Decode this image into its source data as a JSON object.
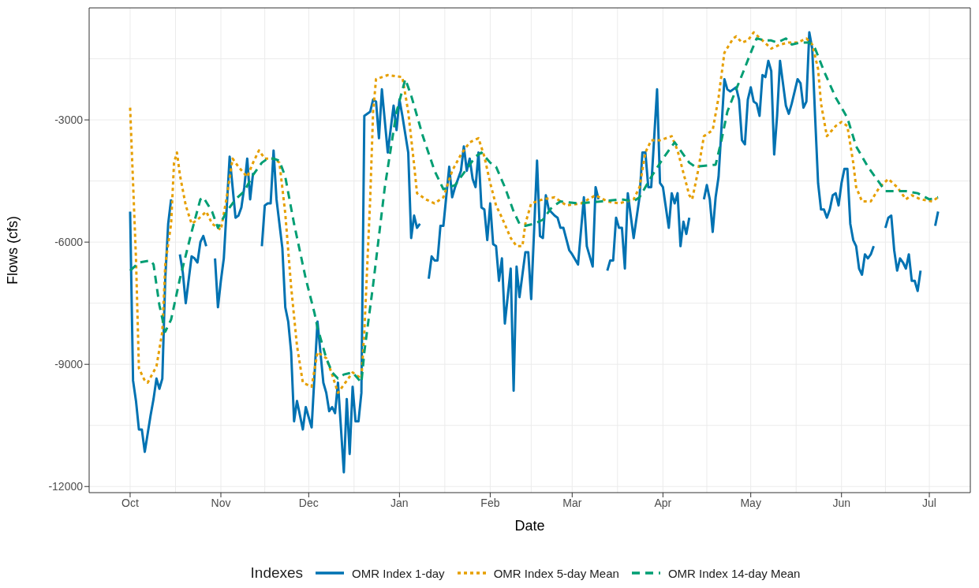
{
  "chart_data": {
    "type": "line",
    "xlabel": "Date",
    "ylabel": "Flows (cfs)",
    "legend_title": "Indexes",
    "legend": "bottom",
    "grid": true,
    "xlim": [
      "2000-09-17",
      "2001-07-15"
    ],
    "xticks": [
      {
        "value": "2000-10-01",
        "label": "Oct"
      },
      {
        "value": "2000-11-01",
        "label": "Nov"
      },
      {
        "value": "2000-12-01",
        "label": "Dec"
      },
      {
        "value": "2001-01-01",
        "label": "Jan"
      },
      {
        "value": "2001-02-01",
        "label": "Feb"
      },
      {
        "value": "2001-03-01",
        "label": "Mar"
      },
      {
        "value": "2001-04-01",
        "label": "Apr"
      },
      {
        "value": "2001-05-01",
        "label": "May"
      },
      {
        "value": "2001-06-01",
        "label": "Jun"
      },
      {
        "value": "2001-07-01",
        "label": "Jul"
      }
    ],
    "ylim": [
      -12150,
      -250
    ],
    "yticks": [
      {
        "value": -12000,
        "label": "-12000"
      },
      {
        "value": -9000,
        "label": "-9000"
      },
      {
        "value": -6000,
        "label": "-6000"
      },
      {
        "value": -3000,
        "label": "-3000"
      }
    ],
    "series": [
      {
        "name": "OMR Index 1-day",
        "color": "#0072b2",
        "line_style": "solid",
        "x": [
          "2000-10-01",
          "2000-10-02",
          "2000-10-03",
          "2000-10-04",
          "2000-10-05",
          "2000-10-06",
          "2000-10-08",
          "2000-10-09",
          "2000-10-10",
          "2000-10-11",
          "2000-10-12",
          "2000-10-13",
          "2000-10-14",
          "2000-10-15",
          "2000-10-16",
          "2000-10-18",
          "2000-10-19",
          "2000-10-20",
          "2000-10-22",
          "2000-10-23",
          "2000-10-24",
          "2000-10-25",
          "2000-10-26",
          "2000-10-27",
          "2000-10-28",
          "2000-10-30",
          "2000-10-31",
          "2000-11-01",
          "2000-11-02",
          "2000-11-04",
          "2000-11-06",
          "2000-11-07",
          "2000-11-08",
          "2000-11-09",
          "2000-11-10",
          "2000-11-11",
          "2000-11-12",
          "2000-11-13",
          "2000-11-15",
          "2000-11-16",
          "2000-11-17",
          "2000-11-18",
          "2000-11-19",
          "2000-11-20",
          "2000-11-22",
          "2000-11-23",
          "2000-11-24",
          "2000-11-25",
          "2000-11-26",
          "2000-11-27",
          "2000-11-29",
          "2000-11-30",
          "2000-12-02",
          "2000-12-04",
          "2000-12-06",
          "2000-12-07",
          "2000-12-08",
          "2000-12-09",
          "2000-12-10",
          "2000-12-11",
          "2000-12-13",
          "2000-12-14",
          "2000-12-15",
          "2000-12-16",
          "2000-12-17",
          "2000-12-18",
          "2000-12-19",
          "2000-12-20",
          "2000-12-22",
          "2000-12-23",
          "2000-12-24",
          "2000-12-25",
          "2000-12-26",
          "2000-12-28",
          "2000-12-30",
          "2000-12-31",
          "2001-01-01",
          "2001-01-02",
          "2001-01-04",
          "2001-01-05",
          "2001-01-06",
          "2001-01-07",
          "2001-01-08",
          "2001-01-09",
          "2001-01-11",
          "2001-01-12",
          "2001-01-13",
          "2001-01-14",
          "2001-01-15",
          "2001-01-16",
          "2001-01-18",
          "2001-01-19",
          "2001-01-20",
          "2001-01-22",
          "2001-01-23",
          "2001-01-24",
          "2001-01-25",
          "2001-01-26",
          "2001-01-27",
          "2001-01-28",
          "2001-01-29",
          "2001-01-30",
          "2001-01-31",
          "2001-02-01",
          "2001-02-02",
          "2001-02-03",
          "2001-02-04",
          "2001-02-05",
          "2001-02-06",
          "2001-02-08",
          "2001-02-09",
          "2001-02-10",
          "2001-02-11",
          "2001-02-13",
          "2001-02-14",
          "2001-02-15",
          "2001-02-17",
          "2001-02-18",
          "2001-02-19",
          "2001-02-20",
          "2001-02-21",
          "2001-02-23",
          "2001-02-24",
          "2001-02-25",
          "2001-02-26",
          "2001-02-28",
          "2001-03-01",
          "2001-03-03",
          "2001-03-05",
          "2001-03-06",
          "2001-03-08",
          "2001-03-09",
          "2001-03-10",
          "2001-03-11",
          "2001-03-13",
          "2001-03-14",
          "2001-03-15",
          "2001-03-16",
          "2001-03-17",
          "2001-03-18",
          "2001-03-19",
          "2001-03-20",
          "2001-03-22",
          "2001-03-24",
          "2001-03-25",
          "2001-03-26",
          "2001-03-27",
          "2001-03-28",
          "2001-03-30",
          "2001-03-31",
          "2001-04-01",
          "2001-04-03",
          "2001-04-04",
          "2001-04-05",
          "2001-04-06",
          "2001-04-07",
          "2001-04-08",
          "2001-04-09",
          "2001-04-10",
          "2001-04-12",
          "2001-04-15",
          "2001-04-16",
          "2001-04-17",
          "2001-04-18",
          "2001-04-19",
          "2001-04-20",
          "2001-04-22",
          "2001-04-23",
          "2001-04-24",
          "2001-04-25",
          "2001-04-26",
          "2001-04-27",
          "2001-04-28",
          "2001-04-29",
          "2001-04-30",
          "2001-05-01",
          "2001-05-02",
          "2001-05-03",
          "2001-05-04",
          "2001-05-05",
          "2001-05-06",
          "2001-05-07",
          "2001-05-08",
          "2001-05-09",
          "2001-05-10",
          "2001-05-11",
          "2001-05-12",
          "2001-05-13",
          "2001-05-14",
          "2001-05-15",
          "2001-05-17",
          "2001-05-18",
          "2001-05-19",
          "2001-05-20",
          "2001-05-21",
          "2001-05-22",
          "2001-05-23",
          "2001-05-24",
          "2001-05-25",
          "2001-05-26",
          "2001-05-27",
          "2001-05-28",
          "2001-05-29",
          "2001-05-30",
          "2001-05-31",
          "2001-06-01",
          "2001-06-02",
          "2001-06-03",
          "2001-06-04",
          "2001-06-05",
          "2001-06-06",
          "2001-06-07",
          "2001-06-08",
          "2001-06-09",
          "2001-06-10",
          "2001-06-11",
          "2001-06-12",
          "2001-06-14",
          "2001-06-16",
          "2001-06-17",
          "2001-06-18",
          "2001-06-19",
          "2001-06-20",
          "2001-06-21",
          "2001-06-22",
          "2001-06-23",
          "2001-06-24",
          "2001-06-25",
          "2001-06-26",
          "2001-06-27",
          "2001-06-28",
          "2001-06-30",
          "2001-07-03",
          "2001-07-04"
        ],
        "values": [
          -5250,
          -9400,
          -9900,
          -10600,
          -10600,
          -11150,
          -10250,
          -9850,
          -9350,
          -9600,
          -9350,
          -6900,
          -5550,
          -4950,
          null,
          -6300,
          -6750,
          -7500,
          -6350,
          -6400,
          -6500,
          -6000,
          -5850,
          -6100,
          null,
          -6400,
          -7600,
          -6950,
          -6400,
          -3900,
          -5400,
          -5350,
          -5150,
          -4650,
          -3950,
          -4950,
          -4300,
          null,
          -6100,
          -5100,
          -5050,
          -5050,
          -3750,
          -4950,
          -6150,
          -7600,
          -7950,
          -8700,
          -10400,
          -9900,
          -10600,
          -10050,
          -10550,
          -7950,
          -9450,
          -9700,
          -10150,
          -10050,
          -10200,
          -9450,
          -11650,
          -9850,
          -11200,
          -9550,
          -10400,
          -10400,
          -9700,
          -2900,
          -2800,
          -2500,
          -2550,
          -3450,
          -2250,
          -3800,
          -2650,
          -3250,
          -2500,
          -2900,
          -3800,
          -5900,
          -5350,
          -5650,
          -5550,
          null,
          -6900,
          -6350,
          -6450,
          -6450,
          -5600,
          -5600,
          -4150,
          -4900,
          -4650,
          -4250,
          -3650,
          -4250,
          -3950,
          -4450,
          -4650,
          -3800,
          -5150,
          -5200,
          -5950,
          -5050,
          -6050,
          -6100,
          -6950,
          -6400,
          -8000,
          -6650,
          -9650,
          -6600,
          -7350,
          -6250,
          -6250,
          -7400,
          -4000,
          -5850,
          -5900,
          -4850,
          -5200,
          -5350,
          -5400,
          -5650,
          -5650,
          -6200,
          -6300,
          -6550,
          -4900,
          -6100,
          -6600,
          -4650,
          -4950,
          null,
          -6700,
          -6450,
          -6450,
          -5400,
          -5650,
          -5650,
          -6650,
          -4800,
          -5900,
          -4900,
          -3800,
          -3800,
          -4650,
          -4650,
          -2250,
          -4550,
          -4650,
          -5650,
          -4800,
          -5050,
          -4800,
          -6100,
          -5500,
          -5800,
          -5400,
          null,
          -4950,
          -4600,
          -4950,
          -5750,
          -4900,
          -4400,
          -2000,
          -2250,
          -2300,
          -2250,
          -2200,
          -2500,
          -3500,
          -3600,
          -2500,
          -2200,
          -2550,
          -2600,
          -2900,
          -1900,
          -1950,
          -1550,
          -1800,
          -3850,
          -2900,
          -1550,
          -2100,
          -2650,
          -2850,
          -2600,
          -2000,
          -2100,
          -2700,
          -2550,
          -850,
          -1250,
          -2950,
          -4550,
          -5200,
          -5200,
          -5400,
          -5200,
          -4850,
          -4800,
          -5100,
          -4550,
          -4200,
          -4200,
          -5550,
          -5950,
          -6100,
          -6650,
          -6800,
          -6300,
          -6400,
          -6300,
          -6100,
          null,
          -5650,
          -5400,
          -5350,
          -6200,
          -6700,
          -6400,
          -6500,
          -6650,
          -6300,
          -6950,
          -6950,
          -7200,
          -6700,
          null,
          -5600,
          -5250
        ]
      },
      {
        "name": "OMR Index 5-day Mean",
        "color": "#e69f00",
        "line_style": "dotted",
        "x": [
          "2000-10-01",
          "2000-10-03",
          "2000-10-04",
          "2000-10-06",
          "2000-10-07",
          "2000-10-10",
          "2000-10-12",
          "2000-10-13",
          "2000-10-15",
          "2000-10-16",
          "2000-10-17",
          "2000-10-18",
          "2000-10-20",
          "2000-10-22",
          "2000-10-24",
          "2000-10-27",
          "2000-10-29",
          "2000-11-01",
          "2000-11-03",
          "2000-11-05",
          "2000-11-07",
          "2000-11-10",
          "2000-11-12",
          "2000-11-14",
          "2000-11-16",
          "2000-11-19",
          "2000-11-21",
          "2000-11-23",
          "2000-11-25",
          "2000-11-27",
          "2000-11-29",
          "2000-12-02",
          "2000-12-04",
          "2000-12-07",
          "2000-12-09",
          "2000-12-11",
          "2000-12-14",
          "2000-12-16",
          "2000-12-19",
          "2000-12-20",
          "2000-12-22",
          "2000-12-23",
          "2000-12-24",
          "2000-12-28",
          "2001-01-02",
          "2001-01-04",
          "2001-01-06",
          "2001-01-07",
          "2001-01-10",
          "2001-01-13",
          "2001-01-16",
          "2001-01-19",
          "2001-01-22",
          "2001-01-25",
          "2001-01-28",
          "2001-01-30",
          "2001-02-01",
          "2001-02-03",
          "2001-02-05",
          "2001-02-08",
          "2001-02-10",
          "2001-02-12",
          "2001-02-13",
          "2001-02-15",
          "2001-02-19",
          "2001-02-23",
          "2001-02-27",
          "2001-03-04",
          "2001-03-09",
          "2001-03-13",
          "2001-03-17",
          "2001-03-22",
          "2001-03-24",
          "2001-03-26",
          "2001-03-28",
          "2001-03-31",
          "2001-04-04",
          "2001-04-06",
          "2001-04-08",
          "2001-04-10",
          "2001-04-11",
          "2001-04-13",
          "2001-04-15",
          "2001-04-18",
          "2001-04-20",
          "2001-04-22",
          "2001-04-25",
          "2001-04-26",
          "2001-04-28",
          "2001-04-30",
          "2001-05-02",
          "2001-05-05",
          "2001-05-08",
          "2001-05-11",
          "2001-05-14",
          "2001-05-17",
          "2001-05-20",
          "2001-05-22",
          "2001-05-24",
          "2001-05-25",
          "2001-05-27",
          "2001-05-30",
          "2001-06-01",
          "2001-06-03",
          "2001-06-05",
          "2001-06-06",
          "2001-06-08",
          "2001-06-11",
          "2001-06-14",
          "2001-06-17",
          "2001-06-20",
          "2001-06-23",
          "2001-06-25",
          "2001-06-28",
          "2001-07-02",
          "2001-07-04"
        ],
        "values": [
          -2700,
          -6400,
          -9100,
          -9400,
          -9450,
          -9050,
          -8200,
          -6550,
          -5550,
          -4050,
          -3800,
          -4350,
          -5100,
          -5550,
          -5450,
          -5250,
          -5550,
          -5700,
          -4900,
          -3950,
          -4150,
          -4400,
          -4050,
          -3750,
          -3950,
          -3950,
          -4050,
          -5300,
          -7100,
          -8550,
          -9450,
          -9550,
          -8700,
          -8850,
          -9250,
          -9700,
          -9400,
          -9200,
          -9350,
          -8200,
          -4950,
          -2800,
          -2000,
          -1900,
          -1950,
          -2800,
          -4100,
          -4800,
          -4950,
          -5050,
          -4900,
          -4250,
          -3850,
          -3550,
          -3450,
          -3900,
          -4550,
          -5100,
          -5400,
          -5900,
          -6100,
          -6100,
          -5550,
          -5050,
          -4950,
          -4900,
          -5100,
          -5050,
          -4850,
          -5000,
          -5050,
          -4950,
          -4650,
          -3800,
          -3500,
          -3500,
          -3400,
          -3750,
          -4300,
          -4850,
          -4950,
          -4250,
          -3400,
          -3250,
          -2450,
          -1350,
          -1000,
          -950,
          -1100,
          -1050,
          -850,
          -1050,
          -1250,
          -1150,
          -1100,
          -1100,
          -1000,
          -1150,
          -1750,
          -2600,
          -3400,
          -3150,
          -3050,
          -3150,
          -4050,
          -4650,
          -5000,
          -5000,
          -4650,
          -4450,
          -4650,
          -4950,
          -4850,
          -4950,
          -5000,
          -4900
        ]
      },
      {
        "name": "OMR Index 14-day Mean",
        "color": "#009e73",
        "line_style": "dashed",
        "x": [
          "2000-10-01",
          "2000-10-04",
          "2000-10-08",
          "2000-10-09",
          "2000-10-11",
          "2000-10-13",
          "2000-10-15",
          "2000-10-18",
          "2000-10-22",
          "2000-10-25",
          "2000-10-26",
          "2000-10-29",
          "2000-10-31",
          "2000-11-03",
          "2000-11-06",
          "2000-11-09",
          "2000-11-12",
          "2000-11-15",
          "2000-11-17",
          "2000-11-19",
          "2000-11-21",
          "2000-11-23",
          "2000-11-26",
          "2000-11-30",
          "2000-12-03",
          "2000-12-04",
          "2000-12-07",
          "2000-12-09",
          "2000-12-11",
          "2000-12-13",
          "2000-12-16",
          "2000-12-19",
          "2000-12-20",
          "2000-12-23",
          "2000-12-27",
          "2000-12-31",
          "2001-01-03",
          "2001-01-05",
          "2001-01-09",
          "2001-01-13",
          "2001-01-16",
          "2001-01-20",
          "2001-01-23",
          "2001-01-27",
          "2001-01-29",
          "2001-02-01",
          "2001-02-03",
          "2001-02-06",
          "2001-02-09",
          "2001-02-11",
          "2001-02-13",
          "2001-02-16",
          "2001-02-19",
          "2001-02-22",
          "2001-02-25",
          "2001-03-03",
          "2001-03-11",
          "2001-03-18",
          "2001-03-22",
          "2001-03-24",
          "2001-03-28",
          "2001-04-01",
          "2001-04-05",
          "2001-04-07",
          "2001-04-10",
          "2001-04-12",
          "2001-04-19",
          "2001-04-21",
          "2001-04-23",
          "2001-04-26",
          "2001-04-28",
          "2001-05-01",
          "2001-05-03",
          "2001-05-06",
          "2001-05-08",
          "2001-05-10",
          "2001-05-13",
          "2001-05-15",
          "2001-05-18",
          "2001-05-21",
          "2001-05-23",
          "2001-05-26",
          "2001-05-30",
          "2001-06-03",
          "2001-06-06",
          "2001-06-10",
          "2001-06-14",
          "2001-06-16",
          "2001-06-20",
          "2001-06-23",
          "2001-06-27",
          "2001-07-01",
          "2001-07-04"
        ],
        "values": [
          -6700,
          -6500,
          -6450,
          -6550,
          -7550,
          -8200,
          -7900,
          -6900,
          -5750,
          -4950,
          -4900,
          -5250,
          -5650,
          -5250,
          -4950,
          -4750,
          -4350,
          -4050,
          -3950,
          -3950,
          -4000,
          -4400,
          -5550,
          -6900,
          -7750,
          -8100,
          -8850,
          -9200,
          -9350,
          -9250,
          -9200,
          -9450,
          -8700,
          -7050,
          -4650,
          -2800,
          -2000,
          -2400,
          -3400,
          -4250,
          -4700,
          -4600,
          -4300,
          -3900,
          -3800,
          -4050,
          -4150,
          -4650,
          -5250,
          -5550,
          -5600,
          -5550,
          -5450,
          -5150,
          -5000,
          -5050,
          -5000,
          -4950,
          -5000,
          -4900,
          -4400,
          -3950,
          -3550,
          -3750,
          -4050,
          -4150,
          -4100,
          -3500,
          -2800,
          -2250,
          -1900,
          -1350,
          -1000,
          -1050,
          -1050,
          -1100,
          -1000,
          -1150,
          -1100,
          -1100,
          -1250,
          -1800,
          -2450,
          -2950,
          -3650,
          -4150,
          -4550,
          -4750,
          -4750,
          -4750,
          -4800,
          -4950,
          -4900
        ]
      }
    ]
  }
}
